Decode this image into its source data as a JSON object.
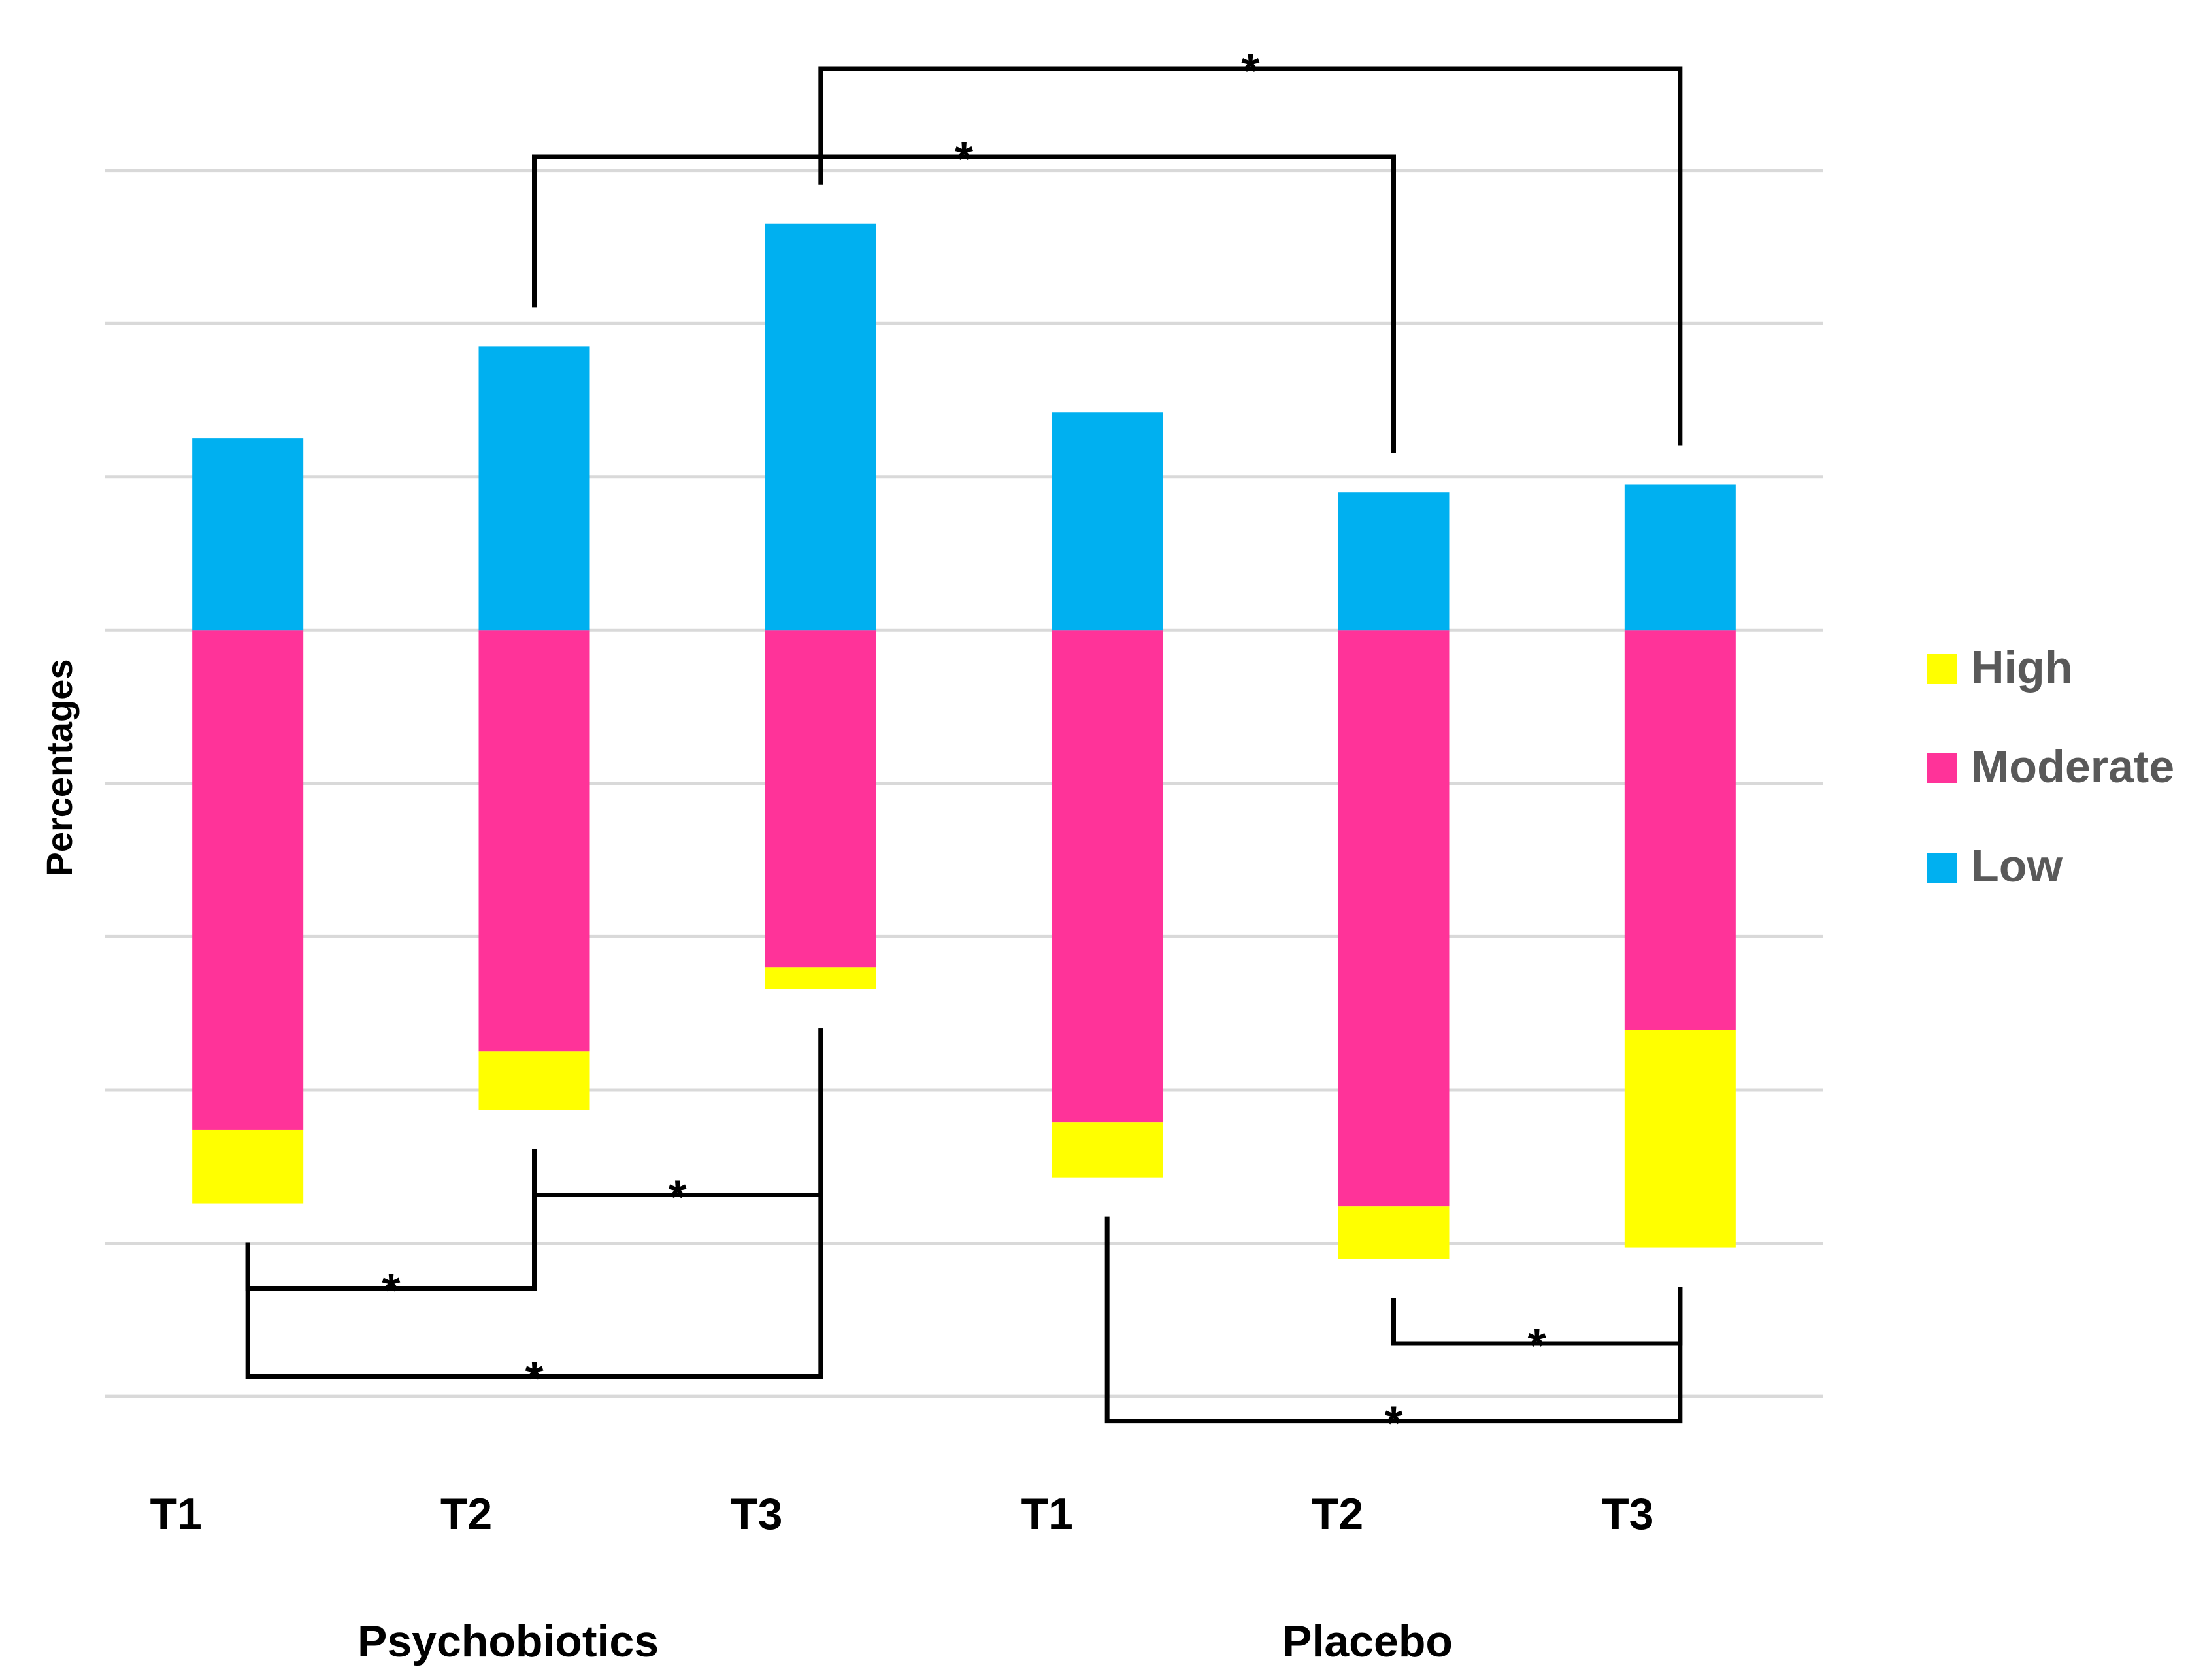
{
  "chart_data": {
    "type": "bar",
    "subtype": "floating-stacked",
    "ylabel": "Percentages",
    "grid": true,
    "gridlines": [
      0,
      10,
      20,
      30,
      40,
      50,
      60,
      70,
      80
    ],
    "ylim": [
      -2,
      88
    ],
    "baseline": 50,
    "groups": [
      "Psychobiotics",
      "Placebo"
    ],
    "categories": [
      "T1",
      "T2",
      "T3",
      "T1",
      "T2",
      "T3"
    ],
    "category_group": [
      0,
      0,
      0,
      1,
      1,
      1
    ],
    "series": [
      {
        "name": "Low",
        "color": "#00B0F0",
        "values": [
          12.5,
          18.5,
          26.5,
          14.2,
          9.0,
          9.5
        ]
      },
      {
        "name": "Moderate",
        "color": "#FF3399",
        "values": [
          32.6,
          27.5,
          22.0,
          32.1,
          37.6,
          26.1
        ]
      },
      {
        "name": "High",
        "color": "#FFFF00",
        "values": [
          4.8,
          3.8,
          1.4,
          3.6,
          3.4,
          14.2
        ]
      }
    ],
    "legend": {
      "placement": "right",
      "order": [
        "High",
        "Moderate",
        "Low"
      ]
    },
    "significance": [
      {
        "from": 0,
        "to": 1,
        "label": "*",
        "side": "bottom"
      },
      {
        "from": 1,
        "to": 2,
        "label": "*",
        "side": "bottom"
      },
      {
        "from": 0,
        "to": 2,
        "label": "*",
        "side": "bottom"
      },
      {
        "from": 4,
        "to": 5,
        "label": "*",
        "side": "bottom"
      },
      {
        "from": 3,
        "to": 5,
        "label": "*",
        "side": "bottom"
      },
      {
        "from": 1,
        "to": 4,
        "label": "*",
        "side": "top"
      },
      {
        "from": 2,
        "to": 5,
        "label": "*",
        "side": "top"
      }
    ]
  }
}
